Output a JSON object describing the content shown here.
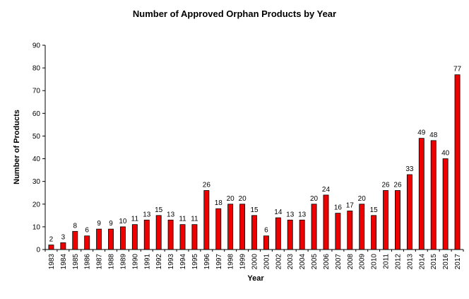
{
  "chart_data": {
    "type": "bar",
    "title": "Number of Approved Orphan Products by Year",
    "xlabel": "Year",
    "ylabel": "Number of Products",
    "ylim": [
      0,
      90
    ],
    "yticks": [
      0,
      10,
      20,
      30,
      40,
      50,
      60,
      70,
      80,
      90
    ],
    "grid": false,
    "legend": "none",
    "bar_color": "#ee0000",
    "categories": [
      "1983",
      "1984",
      "1985",
      "1986",
      "1987",
      "1988",
      "1989",
      "1990",
      "1991",
      "1992",
      "1993",
      "1994",
      "1995",
      "1996",
      "1997",
      "1998",
      "1999",
      "2000",
      "2001",
      "2002",
      "2003",
      "2004",
      "2005",
      "2006",
      "2007",
      "2008",
      "2009",
      "2010",
      "2011",
      "2012",
      "2013",
      "2014",
      "2015",
      "2016",
      "2017"
    ],
    "values": [
      2,
      3,
      8,
      6,
      9,
      9,
      10,
      11,
      13,
      15,
      13,
      11,
      11,
      26,
      18,
      20,
      20,
      15,
      6,
      14,
      13,
      13,
      20,
      24,
      16,
      17,
      20,
      15,
      26,
      26,
      33,
      49,
      48,
      40,
      77
    ]
  }
}
